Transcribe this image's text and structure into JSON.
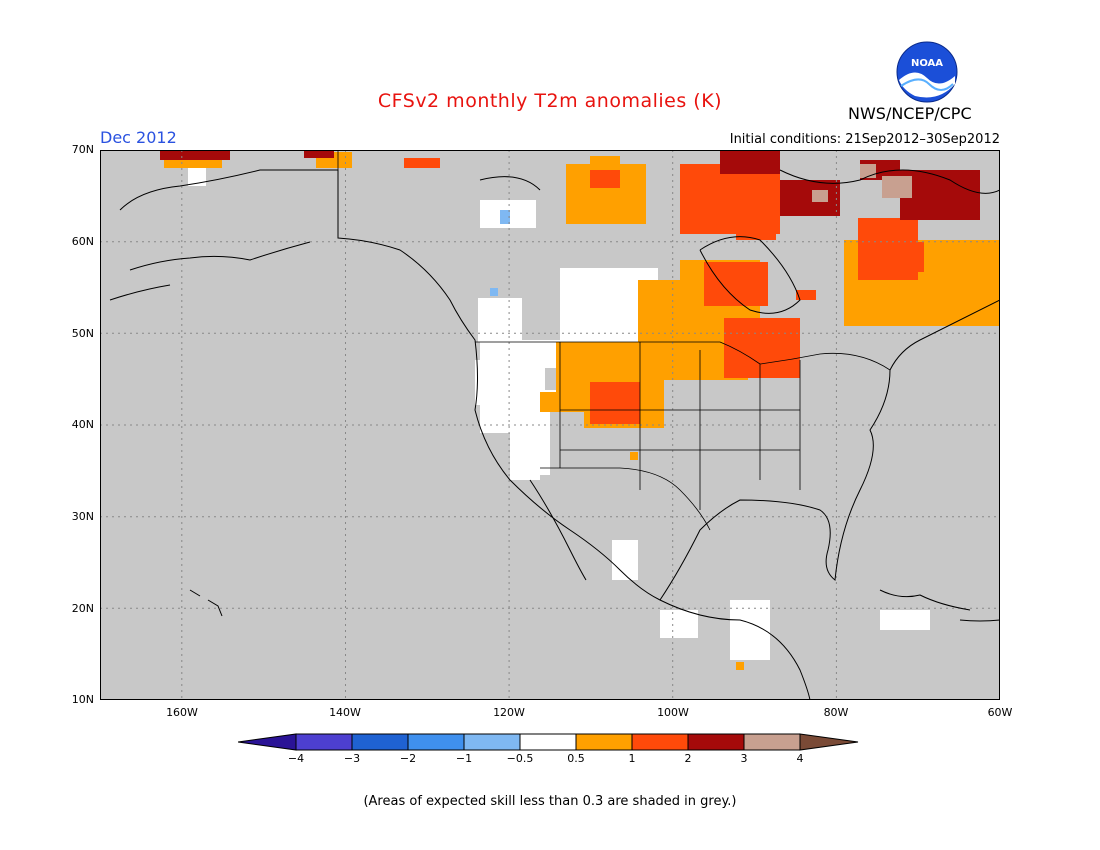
{
  "header": {
    "title": "CFSv2 monthly T2m anomalies (K)",
    "month": "Dec 2012",
    "initial_conditions": "Initial conditions: 21Sep2012–30Sep2012",
    "agency": "NWS/NCEP/CPC",
    "logo_text": "NOAA"
  },
  "axes": {
    "lat_ticks": [
      "70N",
      "60N",
      "50N",
      "40N",
      "30N",
      "20N",
      "10N"
    ],
    "lon_ticks": [
      "160W",
      "140W",
      "120W",
      "100W",
      "80W",
      "60W"
    ],
    "lat_values": [
      70,
      60,
      50,
      40,
      30,
      20,
      10
    ],
    "lon_values": [
      -160,
      -140,
      -120,
      -100,
      -80,
      -60
    ],
    "lon_range": [
      -170,
      -60
    ],
    "lat_range": [
      10,
      70
    ]
  },
  "legend": {
    "labels": [
      "−4",
      "−3",
      "−2",
      "−1",
      "−0.5",
      "0.5",
      "1",
      "2",
      "3",
      "4"
    ],
    "colors": [
      "#2a1396",
      "#4d3fd0",
      "#1f62d2",
      "#3f90ee",
      "#7fb8f2",
      "#ffffff",
      "#ffa000",
      "#ff4a0a",
      "#a50a0a",
      "#c8a090",
      "#7a4a36"
    ]
  },
  "colors": {
    "grey_low_skill": "#c8c8c8",
    "white_near_normal": "#ffffff",
    "orange": "#ffa000",
    "red": "#ff4a0a",
    "dark_red": "#a50a0a",
    "light_blue": "#7fb8f2",
    "brown": "#c8a090"
  },
  "footnote": "(Areas of expected skill less than 0.3 are shaded in grey.)"
}
